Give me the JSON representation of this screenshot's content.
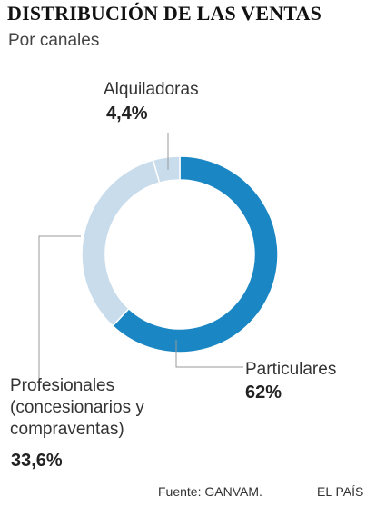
{
  "chart_data": {
    "type": "pie",
    "title": "DISTRIBUCIÓN DE LAS VENTAS",
    "subtitle": "Por canales",
    "series": [
      {
        "name": "Particulares",
        "value": 62,
        "value_label": "62%",
        "label_lines": [
          "Particulares"
        ],
        "color": "#1a87c4"
      },
      {
        "name": "Profesionales (concesionarios y compraventas)",
        "value": 33.6,
        "value_label": "33,6%",
        "label_lines": [
          "Profesionales",
          "(concesionarios y",
          "compraventas)"
        ],
        "color": "#c8dcec"
      },
      {
        "name": "Alquiladoras",
        "value": 4.4,
        "value_label": "4,4%",
        "label_lines": [
          "Alquiladoras"
        ],
        "color": "#c8dcec"
      }
    ]
  },
  "source": "Fuente: GANVAM.",
  "brand": "EL PAÍS"
}
